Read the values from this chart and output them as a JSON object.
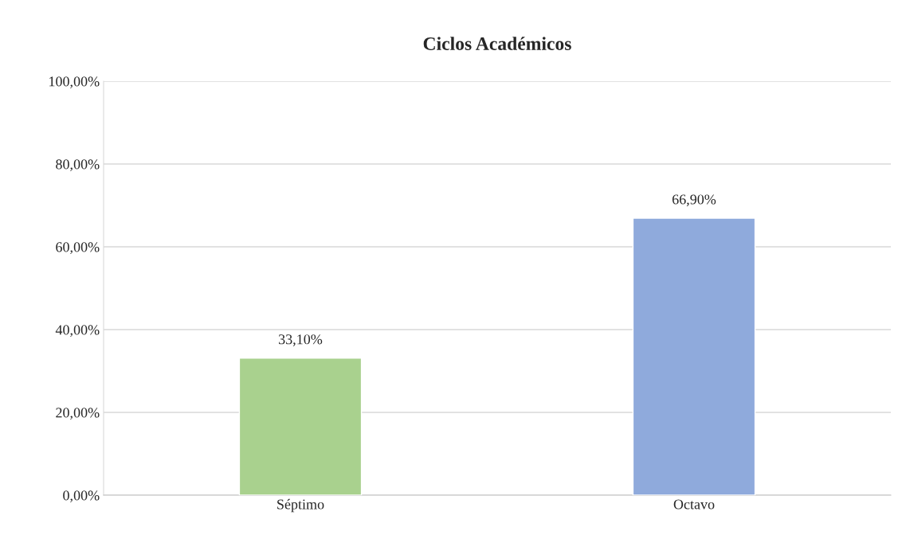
{
  "chart_data": {
    "type": "bar",
    "title": "Ciclos Académicos",
    "categories": [
      "Séptimo",
      "Octavo"
    ],
    "values": [
      33.1,
      66.9
    ],
    "colors": [
      "#a9d18e",
      "#8faadc"
    ],
    "value_labels": [
      "33,10%",
      "66,90%"
    ],
    "ylim": [
      0,
      100
    ],
    "yticks": [
      {
        "value": 0,
        "label": "0,00%"
      },
      {
        "value": 20,
        "label": "20,00%"
      },
      {
        "value": 40,
        "label": "40,00%"
      },
      {
        "value": 60,
        "label": "60,00%"
      },
      {
        "value": 80,
        "label": "80,00%"
      },
      {
        "value": 100,
        "label": "100,00%"
      }
    ],
    "grid": "y",
    "legend": false
  }
}
